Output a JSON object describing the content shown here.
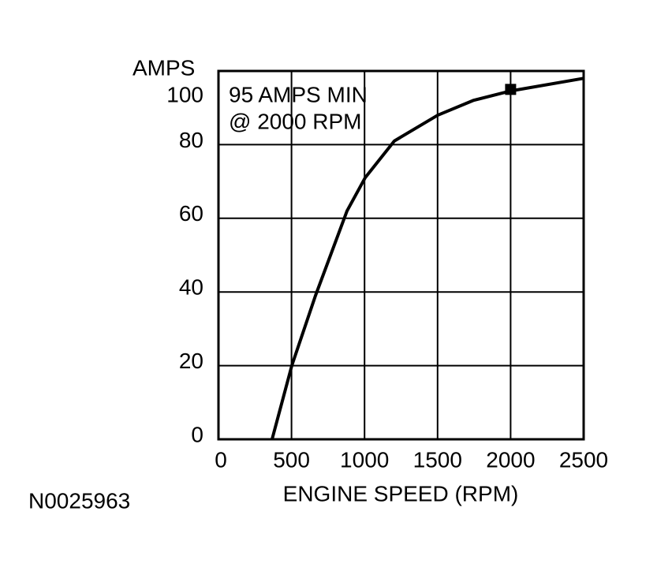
{
  "chart_data": {
    "type": "line",
    "y_label": "AMPS",
    "x_label": "ENGINE SPEED (RPM)",
    "annotation": [
      "95 AMPS MIN",
      "@ 2000 RPM"
    ],
    "figure_id": "N0025963",
    "x": [
      367,
      502,
      664,
      880,
      1004,
      1204,
      1501,
      1744,
      2003,
      2500
    ],
    "series": [
      {
        "color": "#000000",
        "values": [
          0,
          20,
          39,
          62,
          71,
          81,
          88,
          92,
          94.6,
          98
        ]
      }
    ],
    "marker": {
      "x": 2000,
      "y": 95,
      "color": "#000000"
    },
    "xlim": [
      0,
      2500
    ],
    "xticks": [
      0,
      500,
      1000,
      1500,
      2000,
      2500
    ],
    "ylim": [
      0,
      100
    ],
    "yticks": [
      0,
      20,
      40,
      60,
      80,
      100
    ],
    "grid": true
  }
}
